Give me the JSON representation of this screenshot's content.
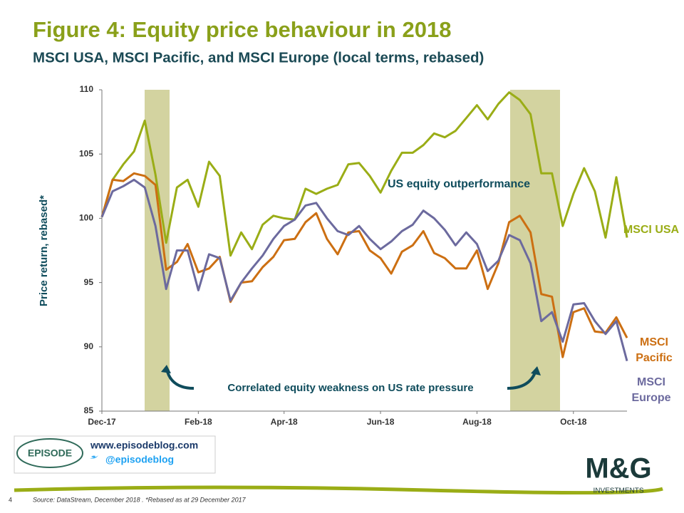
{
  "chart_data": {
    "type": "line",
    "title": "Figure 4: Equity price behaviour in 2018",
    "subtitle": "MSCI USA, MSCI Pacific, and MSCI Europe (local terms, rebased)",
    "y_label": "Price return, rebased*",
    "annotations": [
      "US equity outperformance",
      "Correlated equity weakness on US rate pressure"
    ],
    "categories": [
      "Dec-17",
      null,
      null,
      null,
      null,
      null,
      null,
      null,
      null,
      "Feb-18",
      null,
      null,
      null,
      null,
      null,
      null,
      null,
      "Apr-18",
      null,
      null,
      null,
      null,
      null,
      null,
      null,
      null,
      "Jun-18",
      null,
      null,
      null,
      null,
      null,
      null,
      null,
      null,
      "Aug-18",
      null,
      null,
      null,
      null,
      null,
      null,
      null,
      null,
      "Oct-18",
      null,
      null,
      null,
      null,
      null
    ],
    "series": [
      {
        "name": "MSCI USA",
        "color": "#9aad16",
        "values": [
          100.1,
          103,
          104.2,
          105.2,
          107.6,
          103.4,
          98.1,
          102.4,
          103,
          100.9,
          104.4,
          103.3,
          97.1,
          98.9,
          97.6,
          99.5,
          100.2,
          100,
          99.9,
          102.3,
          101.9,
          102.3,
          102.6,
          104.2,
          104.3,
          103.3,
          102,
          103.7,
          105.1,
          105.1,
          105.7,
          106.6,
          106.3,
          106.8,
          107.8,
          108.8,
          107.7,
          108.9,
          109.8,
          109.2,
          108.1,
          103.5,
          103.5,
          99.4,
          101.9,
          103.9,
          102.1,
          98.5,
          103.2,
          98.5
        ]
      },
      {
        "name": "MSCI Pacific",
        "color": "#cc6f12",
        "values": [
          100.1,
          103,
          102.9,
          103.5,
          103.3,
          102.6,
          96,
          96.6,
          98,
          95.8,
          96.1,
          97,
          93.5,
          95,
          95.1,
          96.2,
          97,
          98.3,
          98.4,
          99.7,
          100.4,
          98.4,
          97.2,
          98.9,
          99,
          97.5,
          96.9,
          95.7,
          97.4,
          97.9,
          99,
          97.3,
          96.9,
          96.1,
          96.1,
          97.5,
          94.5,
          96.5,
          99.7,
          100.2,
          98.9,
          94.1,
          93.9,
          89.2,
          92.7,
          93,
          91.2,
          91.1,
          92.3,
          90.7
        ]
      },
      {
        "name": "MSCI Europe",
        "color": "#6c6a9e",
        "values": [
          100.1,
          102.1,
          102.5,
          103,
          102.4,
          99.4,
          94.5,
          97.5,
          97.5,
          94.4,
          97.2,
          96.9,
          93.6,
          95,
          96.1,
          97.1,
          98.4,
          99.4,
          99.9,
          101,
          101.2,
          100,
          99,
          98.7,
          99.4,
          98.4,
          97.6,
          98.2,
          99,
          99.5,
          100.6,
          100,
          99.1,
          97.9,
          98.9,
          98,
          95.9,
          96.7,
          98.7,
          98.3,
          96.5,
          92,
          92.7,
          90.4,
          93.3,
          93.4,
          92,
          91,
          92,
          88.9
        ]
      }
    ],
    "ylim": [
      85,
      110
    ],
    "yticks": [
      85,
      90,
      95,
      100,
      105,
      110
    ],
    "grid": false
  },
  "footer": {
    "page": "4",
    "source": "Source: DataStream, December 2018 . *Rebased as at 29 December 2017",
    "website": "www.episodeblog.com",
    "twitter": "@episodeblog",
    "logo": "EPISODE",
    "brand": "M&G",
    "brand_sub": "INVESTMENTS"
  }
}
